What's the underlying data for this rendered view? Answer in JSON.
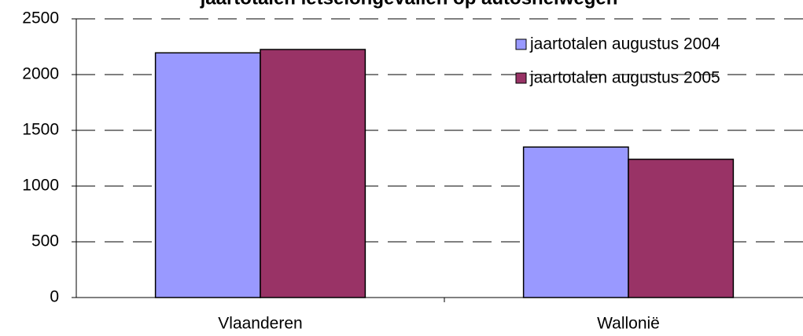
{
  "chart_data": {
    "type": "bar",
    "title": "jaartotalen letselongevallen op autosnelwegen",
    "categories": [
      "Vlaanderen",
      "Wallonië"
    ],
    "series": [
      {
        "name": "jaartotalen augustus 2004",
        "color": "#9999ff",
        "values": [
          2195,
          1350
        ]
      },
      {
        "name": "jaartotalen augustus 2005",
        "color": "#993366",
        "values": [
          2225,
          1240
        ]
      }
    ],
    "ylim": [
      0,
      2500
    ],
    "yticks": [
      0,
      500,
      1000,
      1500,
      2000,
      2500
    ],
    "grid": true,
    "legend": "top-right"
  }
}
